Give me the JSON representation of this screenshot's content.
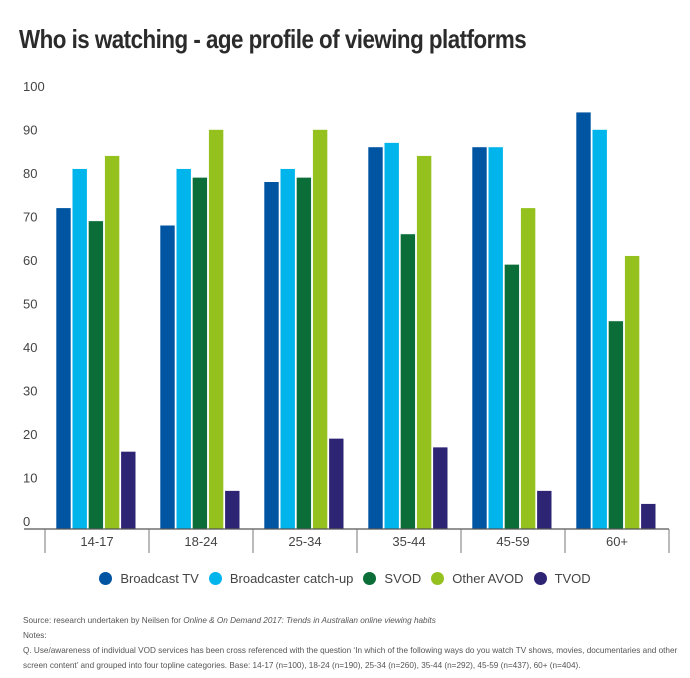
{
  "chart_data": {
    "type": "bar",
    "title": "Who is watching - age profile of viewing platforms",
    "xlabel": "",
    "ylabel": "",
    "ylim": [
      0,
      100
    ],
    "yticks": [
      0,
      10,
      20,
      30,
      40,
      50,
      60,
      70,
      80,
      90,
      100
    ],
    "grid": false,
    "legend_position": "bottom",
    "categories": [
      "14-17",
      "18-24",
      "25-34",
      "35-44",
      "45-59",
      "60+"
    ],
    "series": [
      {
        "name": "Broadcast TV",
        "color": "#0055A2",
        "values": [
          72,
          68,
          78,
          86,
          86,
          94
        ]
      },
      {
        "name": "Broadcaster catch-up",
        "color": "#00B5EC",
        "values": [
          81,
          81,
          81,
          87,
          86,
          90
        ]
      },
      {
        "name": "SVOD",
        "color": "#0B6E38",
        "values": [
          69,
          79,
          79,
          66,
          59,
          46
        ]
      },
      {
        "name": "Other AVOD",
        "color": "#95C11F",
        "values": [
          84,
          90,
          90,
          84,
          72,
          61
        ]
      },
      {
        "name": "TVOD",
        "color": "#2E2474",
        "values": [
          16,
          7,
          19,
          17,
          7,
          4
        ]
      }
    ]
  },
  "footer": {
    "source_prefix": "Source: research undertaken by Neilsen for ",
    "source_italic": "Online & On Demand 2017: Trends in Australian online viewing habits",
    "notes_label": "Notes:",
    "note_q": "Q. Use/awareness of individual VOD services has been cross referenced with the question ‘In which of the following ways do you watch TV shows, movies, documentaries and other screen content’ and grouped into four topline categories. Base: 14-17 (n=100), 18-24 (n=190), 25-34 (n=260), 35-44 (n=292), 45-59 (n=437), 60+ (n=404)."
  }
}
